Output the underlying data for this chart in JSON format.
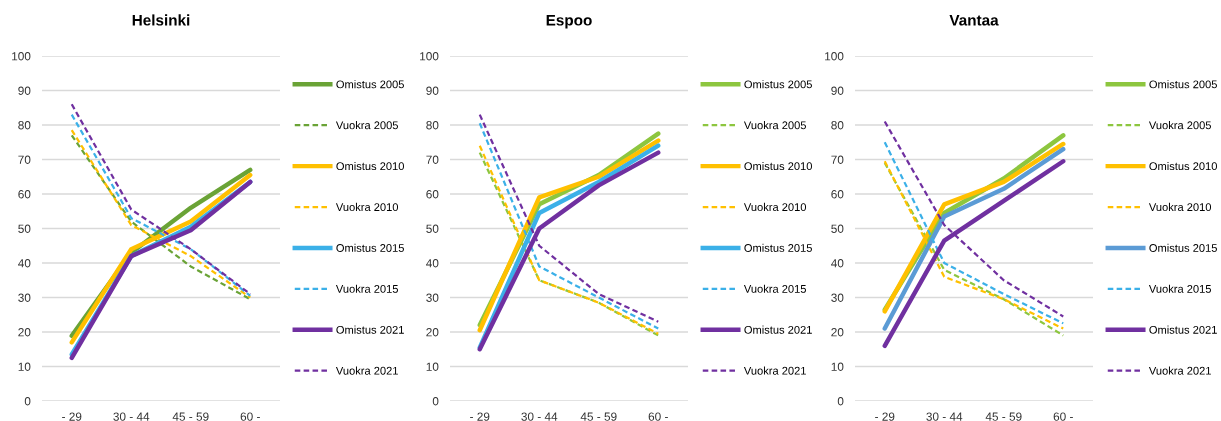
{
  "chart_data": [
    {
      "type": "line",
      "title": "Helsinki",
      "categories": [
        "- 29",
        "30 - 44",
        "45 - 59",
        "60 -"
      ],
      "ylim": [
        0,
        100
      ],
      "yticks": [
        0,
        10,
        20,
        30,
        40,
        50,
        60,
        70,
        80,
        90,
        100
      ],
      "grid": "y",
      "legend": "right",
      "series": [
        {
          "name": "Omistus 2005",
          "color": "#6aa336",
          "line_style": "solid",
          "values": [
            18.9,
            43,
            56,
            67
          ]
        },
        {
          "name": "Vuokra 2005",
          "color": "#6aa336",
          "line_style": "dashed",
          "values": [
            77,
            52,
            39,
            29.5
          ]
        },
        {
          "name": "Omistus 2010",
          "color": "#ffc000",
          "line_style": "solid",
          "values": [
            17,
            44,
            52,
            65.5
          ]
        },
        {
          "name": "Vuokra 2010",
          "color": "#ffc000",
          "line_style": "dashed",
          "values": [
            78.5,
            51,
            42,
            30
          ]
        },
        {
          "name": "Omistus 2015",
          "color": "#3bb0e8",
          "line_style": "solid",
          "values": [
            13.5,
            42,
            50.5,
            63.5
          ]
        },
        {
          "name": "Vuokra 2015",
          "color": "#3bb0e8",
          "line_style": "dashed",
          "values": [
            83,
            53,
            44,
            30.5
          ]
        },
        {
          "name": "Omistus 2021",
          "color": "#7030a0",
          "line_style": "solid",
          "values": [
            12.5,
            42,
            49.5,
            63.5
          ]
        },
        {
          "name": "Vuokra 2021",
          "color": "#7030a0",
          "line_style": "dashed",
          "values": [
            86,
            55.5,
            44,
            31
          ]
        }
      ]
    },
    {
      "type": "line",
      "title": "Espoo",
      "categories": [
        "- 29",
        "30 - 44",
        "45 - 59",
        "60 -"
      ],
      "ylim": [
        0,
        100
      ],
      "yticks": [
        0,
        10,
        20,
        30,
        40,
        50,
        60,
        70,
        80,
        90,
        100
      ],
      "grid": "y",
      "legend": "right",
      "series": [
        {
          "name": "Omistus 2005",
          "color": "#8dc63f",
          "line_style": "solid",
          "values": [
            22,
            57,
            65.5,
            77.5
          ]
        },
        {
          "name": "Vuokra 2005",
          "color": "#8dc63f",
          "line_style": "dashed",
          "values": [
            72,
            35,
            28.5,
            19
          ]
        },
        {
          "name": "Omistus 2010",
          "color": "#ffc000",
          "line_style": "solid",
          "values": [
            20.5,
            59,
            65,
            75.5
          ]
        },
        {
          "name": "Vuokra 2010",
          "color": "#ffc000",
          "line_style": "dashed",
          "values": [
            74,
            35,
            28.5,
            19.5
          ]
        },
        {
          "name": "Omistus 2015",
          "color": "#3bb0e8",
          "line_style": "solid",
          "values": [
            15.5,
            54.5,
            63.5,
            74
          ]
        },
        {
          "name": "Vuokra 2015",
          "color": "#3bb0e8",
          "line_style": "dashed",
          "values": [
            80.5,
            39,
            30,
            21
          ]
        },
        {
          "name": "Omistus 2021",
          "color": "#7030a0",
          "line_style": "solid",
          "values": [
            15,
            50,
            62.5,
            72
          ]
        },
        {
          "name": "Vuokra 2021",
          "color": "#7030a0",
          "line_style": "dashed",
          "values": [
            83,
            45,
            31,
            23
          ]
        }
      ]
    },
    {
      "type": "line",
      "title": "Vantaa",
      "categories": [
        "- 29",
        "30 - 44",
        "45 - 59",
        "60 -"
      ],
      "ylim": [
        0,
        100
      ],
      "yticks": [
        0,
        10,
        20,
        30,
        40,
        50,
        60,
        70,
        80,
        90,
        100
      ],
      "grid": "y",
      "legend": "right",
      "series": [
        {
          "name": "Omistus 2005",
          "color": "#8dc63f",
          "line_style": "solid",
          "values": [
            26.5,
            54.5,
            64.5,
            77
          ]
        },
        {
          "name": "Vuokra 2005",
          "color": "#8dc63f",
          "line_style": "dashed",
          "values": [
            69,
            38,
            29.5,
            19
          ]
        },
        {
          "name": "Omistus 2010",
          "color": "#ffc000",
          "line_style": "solid",
          "values": [
            26,
            57,
            63.5,
            74.5
          ]
        },
        {
          "name": "Vuokra 2010",
          "color": "#ffc000",
          "line_style": "dashed",
          "values": [
            69.5,
            36,
            29.5,
            21
          ]
        },
        {
          "name": "Omistus 2015",
          "color": "#5b9bd5",
          "line_style": "solid",
          "values": [
            21,
            53.5,
            61.5,
            73
          ]
        },
        {
          "name": "Vuokra 2015",
          "color": "#3bb0e8",
          "line_style": "dashed",
          "values": [
            75,
            40,
            31,
            22.5
          ]
        },
        {
          "name": "Omistus 2021",
          "color": "#7030a0",
          "line_style": "solid",
          "values": [
            16,
            46.5,
            58,
            69.5
          ]
        },
        {
          "name": "Vuokra 2021",
          "color": "#7030a0",
          "line_style": "dashed",
          "values": [
            81,
            51,
            35,
            24.5
          ]
        }
      ]
    }
  ]
}
